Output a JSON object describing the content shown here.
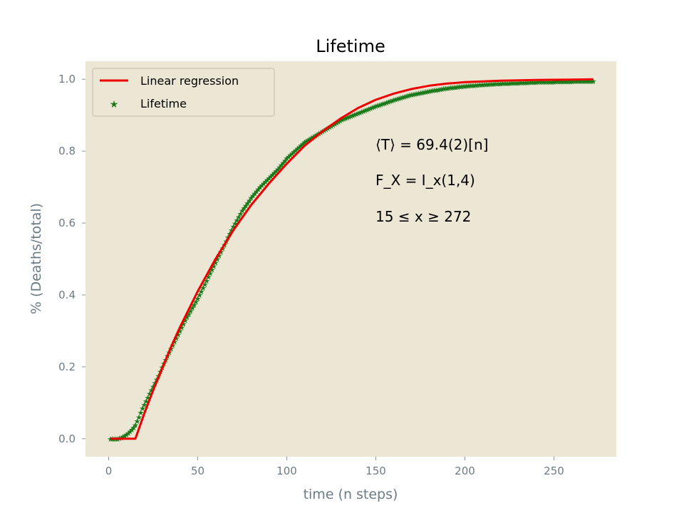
{
  "chart_data": {
    "type": "line",
    "title": "Lifetime",
    "xlabel": "time (n steps)",
    "ylabel": "% (Deaths/total)",
    "xlim": [
      -13,
      285
    ],
    "ylim": [
      -0.05,
      1.05
    ],
    "xticks": [
      0,
      50,
      100,
      150,
      200,
      250
    ],
    "yticks": [
      0.0,
      0.2,
      0.4,
      0.6,
      0.8,
      1.0
    ],
    "xtick_labels": [
      "0",
      "50",
      "100",
      "150",
      "200",
      "250"
    ],
    "ytick_labels": [
      "0.0",
      "0.2",
      "0.4",
      "0.6",
      "0.8",
      "1.0"
    ],
    "grid": false,
    "legend_position": "top-left",
    "colors": {
      "background": "#ece6d4",
      "linear_regression": "#ee0000",
      "lifetime": "#1a7a1a"
    },
    "series": [
      {
        "name": "Linear regression",
        "kind": "line",
        "x": [
          1,
          15,
          20,
          25,
          30,
          35,
          40,
          50,
          60,
          70,
          80,
          90,
          100,
          110,
          120,
          130,
          140,
          150,
          160,
          170,
          180,
          190,
          200,
          220,
          240,
          260,
          272
        ],
        "y": [
          0.0,
          0.0,
          0.07,
          0.135,
          0.195,
          0.255,
          0.31,
          0.41,
          0.5,
          0.58,
          0.65,
          0.71,
          0.765,
          0.815,
          0.855,
          0.89,
          0.92,
          0.943,
          0.96,
          0.973,
          0.982,
          0.988,
          0.992,
          0.996,
          0.998,
          0.999,
          1.0
        ]
      },
      {
        "name": "Lifetime",
        "kind": "scatter",
        "x": [
          1,
          3,
          5,
          7,
          9,
          11,
          13,
          15,
          17,
          19,
          21,
          23,
          25,
          28,
          31,
          34,
          37,
          40,
          43,
          46,
          50,
          55,
          60,
          65,
          70,
          75,
          80,
          85,
          90,
          95,
          100,
          110,
          120,
          130,
          140,
          150,
          160,
          170,
          180,
          190,
          200,
          210,
          220,
          230,
          240,
          250,
          260,
          272
        ],
        "y": [
          0.0,
          0.0,
          0.0,
          0.003,
          0.008,
          0.015,
          0.025,
          0.038,
          0.06,
          0.085,
          0.105,
          0.125,
          0.145,
          0.175,
          0.21,
          0.24,
          0.27,
          0.3,
          0.33,
          0.355,
          0.39,
          0.44,
          0.49,
          0.54,
          0.59,
          0.635,
          0.67,
          0.7,
          0.725,
          0.75,
          0.78,
          0.825,
          0.855,
          0.885,
          0.905,
          0.925,
          0.942,
          0.957,
          0.967,
          0.975,
          0.981,
          0.985,
          0.988,
          0.99,
          0.992,
          0.993,
          0.994,
          0.995
        ]
      }
    ],
    "annotations": [
      {
        "text": "⟨T⟩ = 69.4(2)[n]"
      },
      {
        "text": "F_X = I_x(1,4)"
      },
      {
        "text": "15 ≤ x ≥ 272"
      }
    ]
  }
}
